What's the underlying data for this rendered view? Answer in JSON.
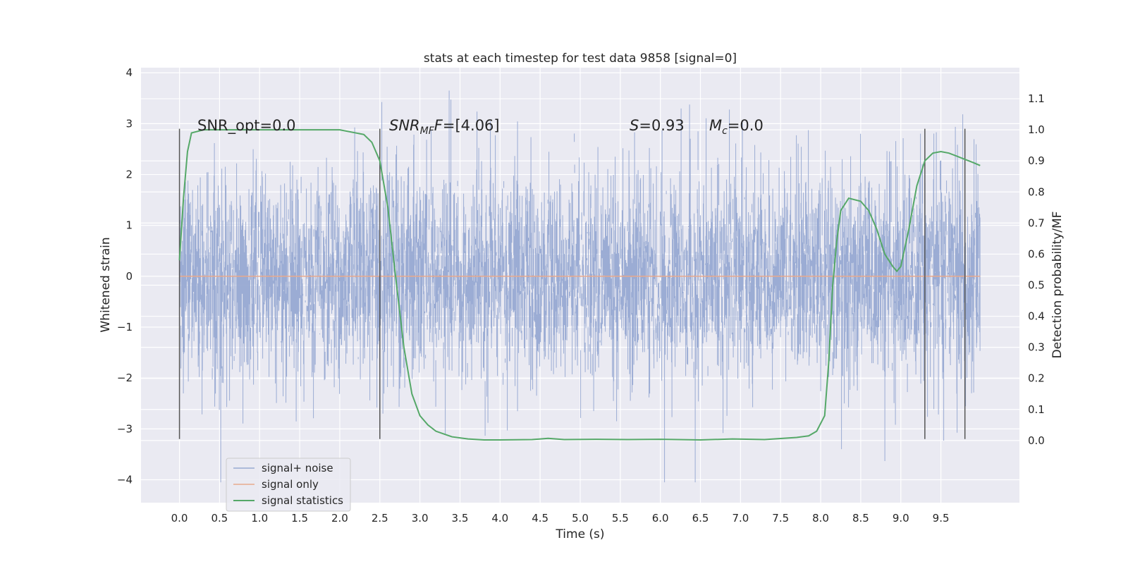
{
  "chart_data": {
    "type": "line",
    "title": "stats at each timestep for test data 9858 [signal=0]",
    "xlabel": "Time (s)",
    "ylabel": "Whitened strain",
    "ylabel_right": "Detection probability/MF",
    "xlim": [
      -0.48,
      10.48
    ],
    "ylim": [
      -4.45,
      4.1
    ],
    "ylim_right": [
      -0.2,
      1.2
    ],
    "x_ticks": [
      "0.0",
      "0.5",
      "1.0",
      "1.5",
      "2.0",
      "2.5",
      "3.0",
      "3.5",
      "4.0",
      "4.5",
      "5.0",
      "5.5",
      "6.0",
      "6.5",
      "7.0",
      "7.5",
      "8.0",
      "8.5",
      "9.0",
      "9.5"
    ],
    "y_ticks": [
      "4",
      "3",
      "2",
      "1",
      "0",
      "−1",
      "−2",
      "−3",
      "−4"
    ],
    "y_ticks_right": [
      "1.1",
      "1.0",
      "0.9",
      "0.8",
      "0.7",
      "0.6",
      "0.5",
      "0.4",
      "0.3",
      "0.2",
      "0.1",
      "0.0"
    ],
    "grid": true,
    "legend_position": "lower-left",
    "annotations": {
      "snr_opt": "SNR_opt=0.0",
      "snr_mf_a": "SNR",
      "snr_mf_b": "MF",
      "snr_mf_c": "=[4.06]",
      "s_a": "S",
      "s_b": "=0.93",
      "mc_a": "M",
      "mc_b": "c",
      "mc_c": "=0.0"
    },
    "vlines": [
      {
        "x": 0.0,
        "ymin": -3.2,
        "ymax": 2.9
      },
      {
        "x": 2.5,
        "ymin": -3.2,
        "ymax": 2.9
      },
      {
        "x": 9.3,
        "ymin": -3.2,
        "ymax": 2.9
      },
      {
        "x": 9.8,
        "ymin": -3.2,
        "ymax": 2.9
      }
    ],
    "series": [
      {
        "name": "signal+ noise",
        "color": "#97a9d2",
        "axis": "left",
        "noise": {
          "x_start": 0.0,
          "x_end": 9.99,
          "sigma": 1.0,
          "clip": [
            -4.05,
            3.65
          ]
        }
      },
      {
        "name": "signal only",
        "color": "#e8a98c",
        "axis": "left",
        "x": [
          0.0,
          9.99
        ],
        "y": [
          0.0,
          0.0
        ]
      },
      {
        "name": "signal statistics",
        "color": "#55a868",
        "axis": "right",
        "x": [
          0.0,
          0.05,
          0.1,
          0.15,
          0.3,
          0.6,
          1.0,
          1.5,
          2.0,
          2.2,
          2.3,
          2.4,
          2.5,
          2.6,
          2.7,
          2.8,
          2.9,
          3.0,
          3.1,
          3.2,
          3.4,
          3.6,
          3.8,
          4.0,
          4.4,
          4.6,
          4.8,
          5.2,
          5.6,
          6.0,
          6.5,
          6.9,
          7.3,
          7.7,
          7.85,
          7.95,
          8.05,
          8.1,
          8.15,
          8.2,
          8.25,
          8.35,
          8.5,
          8.6,
          8.7,
          8.8,
          8.9,
          8.95,
          9.0,
          9.1,
          9.2,
          9.3,
          9.4,
          9.5,
          9.6,
          9.7,
          9.8,
          9.9,
          9.99
        ],
        "y": [
          0.58,
          0.78,
          0.93,
          0.99,
          1.0,
          1.0,
          1.0,
          1.0,
          1.0,
          0.99,
          0.985,
          0.96,
          0.9,
          0.75,
          0.52,
          0.3,
          0.15,
          0.08,
          0.05,
          0.03,
          0.012,
          0.005,
          0.002,
          0.002,
          0.003,
          0.007,
          0.003,
          0.004,
          0.003,
          0.004,
          0.002,
          0.005,
          0.003,
          0.01,
          0.015,
          0.03,
          0.08,
          0.25,
          0.5,
          0.64,
          0.74,
          0.78,
          0.77,
          0.74,
          0.68,
          0.6,
          0.56,
          0.545,
          0.56,
          0.68,
          0.82,
          0.9,
          0.925,
          0.93,
          0.925,
          0.915,
          0.905,
          0.895,
          0.885
        ]
      }
    ]
  }
}
